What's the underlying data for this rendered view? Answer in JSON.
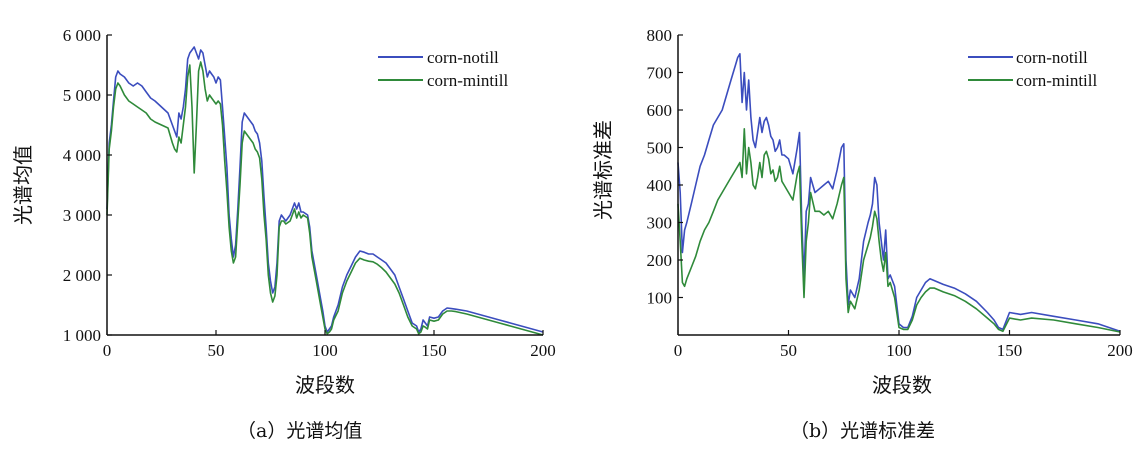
{
  "colors": {
    "notill": "#3b4dbe",
    "mintill": "#2f8a3a",
    "axis": "#111111"
  },
  "captions": {
    "a": "（a）光谱均值",
    "b": "（b）光谱标准差"
  },
  "chart_data": [
    {
      "type": "line",
      "xlabel": "波段数",
      "ylabel": "光谱均值",
      "xlim": [
        0,
        200
      ],
      "ylim": [
        1000,
        6000
      ],
      "xticks": [
        0,
        50,
        100,
        150,
        200
      ],
      "xtick_labels": [
        "0",
        "50",
        "100",
        "150",
        "200"
      ],
      "yticks": [
        1000,
        2000,
        3000,
        4000,
        5000,
        6000
      ],
      "ytick_labels": [
        "1 000",
        "2 000",
        "3 000",
        "4 000",
        "5 000",
        "6 000"
      ],
      "legend_position": "top-right",
      "series": [
        {
          "name": "corn-notill",
          "x": [
            0,
            1,
            2,
            3,
            4,
            5,
            6,
            8,
            10,
            12,
            14,
            16,
            18,
            20,
            22,
            25,
            28,
            30,
            31,
            32,
            33,
            34,
            35,
            36,
            37,
            38,
            39,
            40,
            41,
            42,
            43,
            44,
            45,
            46,
            47,
            48,
            49,
            50,
            51,
            52,
            53,
            54,
            55,
            56,
            57,
            58,
            59,
            60,
            61,
            62,
            63,
            64,
            65,
            66,
            67,
            68,
            69,
            70,
            71,
            72,
            73,
            74,
            75,
            76,
            77,
            78,
            79,
            80,
            81,
            82,
            84,
            86,
            87,
            88,
            89,
            90,
            92,
            93,
            94,
            96,
            98,
            99,
            100,
            101,
            102,
            103,
            104,
            106,
            108,
            110,
            112,
            114,
            116,
            118,
            120,
            122,
            124,
            126,
            128,
            130,
            132,
            134,
            136,
            138,
            140,
            142,
            143,
            144,
            145,
            146,
            147,
            148,
            150,
            152,
            154,
            156,
            158,
            160,
            165,
            170,
            175,
            180,
            185,
            190,
            195,
            200
          ],
          "y": [
            3100,
            4200,
            4500,
            4900,
            5300,
            5400,
            5350,
            5300,
            5200,
            5150,
            5200,
            5150,
            5050,
            4950,
            4900,
            4800,
            4700,
            4500,
            4400,
            4300,
            4700,
            4600,
            4800,
            5100,
            5600,
            5700,
            5750,
            5800,
            5700,
            5600,
            5750,
            5700,
            5500,
            5300,
            5400,
            5350,
            5300,
            5200,
            5300,
            5250,
            4800,
            4300,
            3800,
            3000,
            2600,
            2300,
            2500,
            3100,
            3800,
            4550,
            4700,
            4650,
            4600,
            4550,
            4500,
            4400,
            4350,
            4200,
            3900,
            3300,
            2800,
            2200,
            1900,
            1700,
            1800,
            2200,
            2900,
            3000,
            2950,
            2900,
            3000,
            3200,
            3100,
            3200,
            3050,
            3050,
            3000,
            2800,
            2400,
            2000,
            1600,
            1400,
            1150,
            1050,
            1100,
            1150,
            1300,
            1500,
            1800,
            2000,
            2150,
            2300,
            2400,
            2380,
            2350,
            2350,
            2300,
            2250,
            2200,
            2100,
            2000,
            1800,
            1600,
            1400,
            1200,
            1150,
            1050,
            1100,
            1250,
            1200,
            1150,
            1300,
            1280,
            1300,
            1400,
            1450,
            1440,
            1430,
            1400,
            1350,
            1300,
            1250,
            1200,
            1150,
            1100,
            1050
          ]
        },
        {
          "name": "corn-mintill",
          "x": [
            0,
            1,
            2,
            3,
            4,
            5,
            6,
            8,
            10,
            12,
            14,
            16,
            18,
            20,
            22,
            25,
            28,
            30,
            31,
            32,
            33,
            34,
            35,
            36,
            37,
            38,
            39,
            40,
            41,
            42,
            43,
            44,
            45,
            46,
            47,
            48,
            49,
            50,
            51,
            52,
            53,
            54,
            55,
            56,
            57,
            58,
            59,
            60,
            61,
            62,
            63,
            64,
            65,
            66,
            67,
            68,
            69,
            70,
            71,
            72,
            73,
            74,
            75,
            76,
            77,
            78,
            79,
            80,
            81,
            82,
            84,
            86,
            87,
            88,
            89,
            90,
            92,
            93,
            94,
            96,
            98,
            99,
            100,
            101,
            102,
            103,
            104,
            106,
            108,
            110,
            112,
            114,
            116,
            118,
            120,
            122,
            124,
            126,
            128,
            130,
            132,
            134,
            136,
            138,
            140,
            142,
            143,
            144,
            145,
            146,
            147,
            148,
            150,
            152,
            154,
            156,
            158,
            160,
            165,
            170,
            175,
            180,
            185,
            190,
            195,
            200
          ],
          "y": [
            3000,
            4100,
            4400,
            4800,
            5100,
            5200,
            5150,
            5000,
            4900,
            4850,
            4800,
            4750,
            4700,
            4600,
            4550,
            4500,
            4450,
            4200,
            4100,
            4050,
            4300,
            4200,
            4500,
            4800,
            5300,
            5500,
            4800,
            3700,
            4500,
            5400,
            5550,
            5400,
            5100,
            4900,
            5000,
            4950,
            4900,
            4850,
            4900,
            4850,
            4500,
            3900,
            3400,
            2800,
            2400,
            2200,
            2300,
            2900,
            3500,
            4200,
            4400,
            4350,
            4300,
            4250,
            4200,
            4100,
            4050,
            3950,
            3600,
            3000,
            2600,
            2000,
            1700,
            1550,
            1650,
            2000,
            2800,
            2900,
            2900,
            2850,
            2900,
            3100,
            2950,
            3050,
            2950,
            3000,
            2950,
            2700,
            2300,
            1900,
            1500,
            1300,
            1100,
            1020,
            1050,
            1100,
            1250,
            1400,
            1700,
            1900,
            2050,
            2200,
            2280,
            2250,
            2230,
            2220,
            2180,
            2120,
            2050,
            1950,
            1850,
            1700,
            1500,
            1300,
            1150,
            1100,
            1020,
            1050,
            1150,
            1130,
            1100,
            1250,
            1230,
            1250,
            1350,
            1400,
            1400,
            1390,
            1350,
            1300,
            1250,
            1200,
            1150,
            1100,
            1050,
            1000
          ]
        }
      ]
    },
    {
      "type": "line",
      "xlabel": "波段数",
      "ylabel": "光谱标准差",
      "xlim": [
        0,
        200
      ],
      "ylim": [
        0,
        800
      ],
      "xticks": [
        0,
        50,
        100,
        150,
        200
      ],
      "xtick_labels": [
        "0",
        "50",
        "100",
        "150",
        "200"
      ],
      "yticks": [
        100,
        200,
        300,
        400,
        500,
        600,
        700,
        800
      ],
      "ytick_labels": [
        "100",
        "200",
        "300",
        "400",
        "500",
        "600",
        "700",
        "800"
      ],
      "legend_position": "top-right",
      "series": [
        {
          "name": "corn-notill",
          "x": [
            0,
            1,
            2,
            3,
            4,
            6,
            8,
            10,
            12,
            14,
            16,
            18,
            20,
            22,
            24,
            26,
            27,
            28,
            29,
            30,
            31,
            32,
            33,
            34,
            35,
            36,
            37,
            38,
            39,
            40,
            41,
            42,
            43,
            44,
            45,
            46,
            47,
            48,
            50,
            52,
            54,
            55,
            56,
            57,
            58,
            59,
            60,
            62,
            64,
            66,
            68,
            70,
            72,
            74,
            75,
            76,
            77,
            78,
            80,
            82,
            84,
            86,
            87,
            88,
            89,
            90,
            91,
            92,
            93,
            94,
            95,
            96,
            98,
            100,
            102,
            104,
            106,
            108,
            110,
            112,
            114,
            116,
            118,
            120,
            125,
            130,
            135,
            140,
            143,
            145,
            147,
            150,
            155,
            160,
            170,
            180,
            190,
            200
          ],
          "y": [
            460,
            380,
            220,
            280,
            300,
            350,
            400,
            450,
            480,
            520,
            560,
            580,
            600,
            640,
            680,
            720,
            740,
            750,
            620,
            700,
            600,
            680,
            580,
            520,
            500,
            540,
            580,
            540,
            570,
            580,
            560,
            530,
            520,
            490,
            500,
            520,
            480,
            480,
            470,
            430,
            500,
            540,
            300,
            150,
            330,
            350,
            420,
            380,
            390,
            400,
            410,
            390,
            440,
            500,
            510,
            200,
            80,
            120,
            100,
            150,
            250,
            300,
            320,
            350,
            420,
            400,
            300,
            250,
            200,
            280,
            150,
            160,
            130,
            30,
            20,
            20,
            50,
            100,
            120,
            140,
            150,
            145,
            140,
            135,
            125,
            110,
            90,
            60,
            40,
            20,
            15,
            60,
            55,
            60,
            50,
            40,
            30,
            10
          ]
        },
        {
          "name": "corn-mintill",
          "x": [
            0,
            1,
            2,
            3,
            4,
            6,
            8,
            10,
            12,
            14,
            16,
            18,
            20,
            22,
            24,
            26,
            27,
            28,
            29,
            30,
            31,
            32,
            33,
            34,
            35,
            36,
            37,
            38,
            39,
            40,
            41,
            42,
            43,
            44,
            45,
            46,
            47,
            48,
            50,
            52,
            54,
            55,
            56,
            57,
            58,
            59,
            60,
            62,
            64,
            66,
            68,
            70,
            72,
            74,
            75,
            76,
            77,
            78,
            80,
            82,
            84,
            86,
            87,
            88,
            89,
            90,
            91,
            92,
            93,
            94,
            95,
            96,
            98,
            100,
            102,
            104,
            106,
            108,
            110,
            112,
            114,
            116,
            118,
            120,
            125,
            130,
            135,
            140,
            143,
            145,
            147,
            150,
            155,
            160,
            170,
            180,
            190,
            200
          ],
          "y": [
            350,
            250,
            140,
            130,
            150,
            180,
            210,
            250,
            280,
            300,
            330,
            360,
            380,
            400,
            420,
            440,
            450,
            460,
            420,
            550,
            430,
            500,
            460,
            400,
            390,
            420,
            460,
            420,
            480,
            490,
            470,
            430,
            440,
            410,
            420,
            450,
            410,
            400,
            380,
            360,
            430,
            450,
            250,
            100,
            250,
            300,
            380,
            330,
            330,
            320,
            330,
            310,
            350,
            400,
            420,
            150,
            60,
            90,
            70,
            120,
            200,
            240,
            260,
            290,
            330,
            310,
            250,
            200,
            170,
            220,
            130,
            140,
            100,
            20,
            15,
            15,
            40,
            80,
            100,
            115,
            125,
            125,
            120,
            115,
            105,
            90,
            70,
            45,
            30,
            15,
            10,
            45,
            40,
            45,
            40,
            30,
            20,
            8
          ]
        }
      ]
    }
  ]
}
